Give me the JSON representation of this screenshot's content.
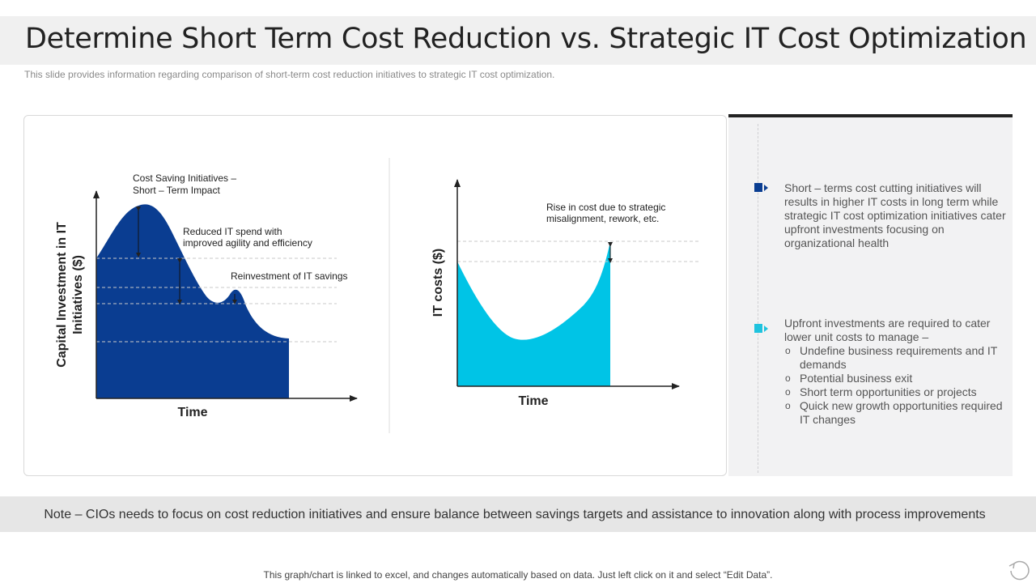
{
  "slide": {
    "title": "Determine Short Term Cost Reduction vs. Strategic IT Cost Optimization",
    "subtitle": "This slide provides information regarding comparison of  short-term cost reduction initiatives to strategic IT cost optimization."
  },
  "left_chart": {
    "ylabel_line1": "Capital Investment in IT",
    "ylabel_line2": "Initiatives ($)",
    "xlabel": "Time",
    "color": "#0a3d91",
    "annotations": {
      "a1_line1": "Cost Saving Initiatives –",
      "a1_line2": "Short – Term Impact",
      "a2_line1": "Reduced IT spend with",
      "a2_line2": "improved agility and efficiency",
      "a3": "Reinvestment of IT savings"
    }
  },
  "right_chart": {
    "ylabel": "IT costs ($)",
    "xlabel": "Time",
    "color": "#00c4e6",
    "annotation_line1": "Rise in cost due to strategic",
    "annotation_line2": "misalignment, rework, etc."
  },
  "right_panel": {
    "point1": {
      "color": "#0a3d91",
      "text": "Short – terms cost cutting initiatives will results in higher IT costs in long term while strategic IT cost optimization initiatives cater upfront investments focusing on organizational health"
    },
    "point2": {
      "color": "#1fc3de",
      "intro": "Upfront investments are required to cater lower unit costs to manage –",
      "bullet_symbol": "o",
      "items": [
        "Undefine business requirements and IT demands",
        "Potential business exit",
        "Short term opportunities or projects",
        "Quick new growth opportunities required IT changes"
      ]
    }
  },
  "note": "Note – CIOs needs to focus on cost reduction initiatives and ensure balance between savings targets and assistance to innovation along with process improvements",
  "footer": "This graph/chart is linked to excel,  and changes automatically based on data. Just left click on it and select “Edit Data”."
}
